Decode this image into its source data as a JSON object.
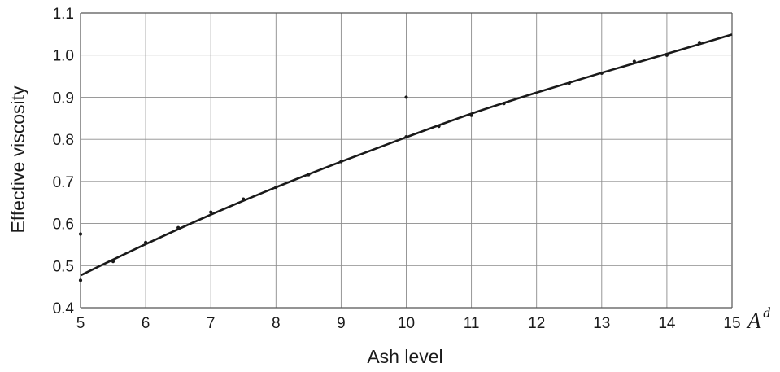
{
  "chart_data": {
    "type": "scatter",
    "title": "",
    "xlabel": "Ash level",
    "ylabel": "Effective viscosity",
    "xlim": [
      5,
      15
    ],
    "ylim": [
      0.4,
      1.1
    ],
    "x_ticks": [
      "5",
      "6",
      "7",
      "8",
      "9",
      "10",
      "11",
      "12",
      "13",
      "14",
      "15"
    ],
    "y_ticks": [
      "0.4",
      "0.5",
      "0.6",
      "0.7",
      "0.8",
      "0.9",
      "1.0",
      "1.1"
    ],
    "x_axis_end_symbol": {
      "base": "A",
      "superscript": "d"
    },
    "grid": true,
    "legend": "none",
    "series": [
      {
        "kind": "points",
        "x": [
          5.0,
          5.0,
          5.5,
          6.0,
          6.5,
          7.0,
          7.5,
          8.0,
          8.5,
          9.0,
          10.0,
          10.0,
          10.5,
          11.0,
          11.5,
          12.5,
          13.0,
          13.5,
          14.0,
          14.5
        ],
        "y": [
          0.575,
          0.465,
          0.51,
          0.555,
          0.59,
          0.627,
          0.658,
          0.686,
          0.716,
          0.747,
          0.9,
          0.806,
          0.831,
          0.857,
          0.885,
          0.933,
          0.957,
          0.985,
          1.0,
          1.03
        ]
      },
      {
        "kind": "fitted-curve",
        "x": [
          5.0,
          6.0,
          7.0,
          8.0,
          9.0,
          10.0,
          11.0,
          12.0,
          13.0,
          14.0,
          15.0
        ],
        "y": [
          0.477,
          0.551,
          0.621,
          0.686,
          0.747,
          0.805,
          0.861,
          0.911,
          0.958,
          1.003,
          1.049
        ]
      }
    ],
    "colors": {
      "line": "#1a1a1a",
      "grid": "#8c8c8c",
      "points": "#1a1a1a"
    }
  }
}
